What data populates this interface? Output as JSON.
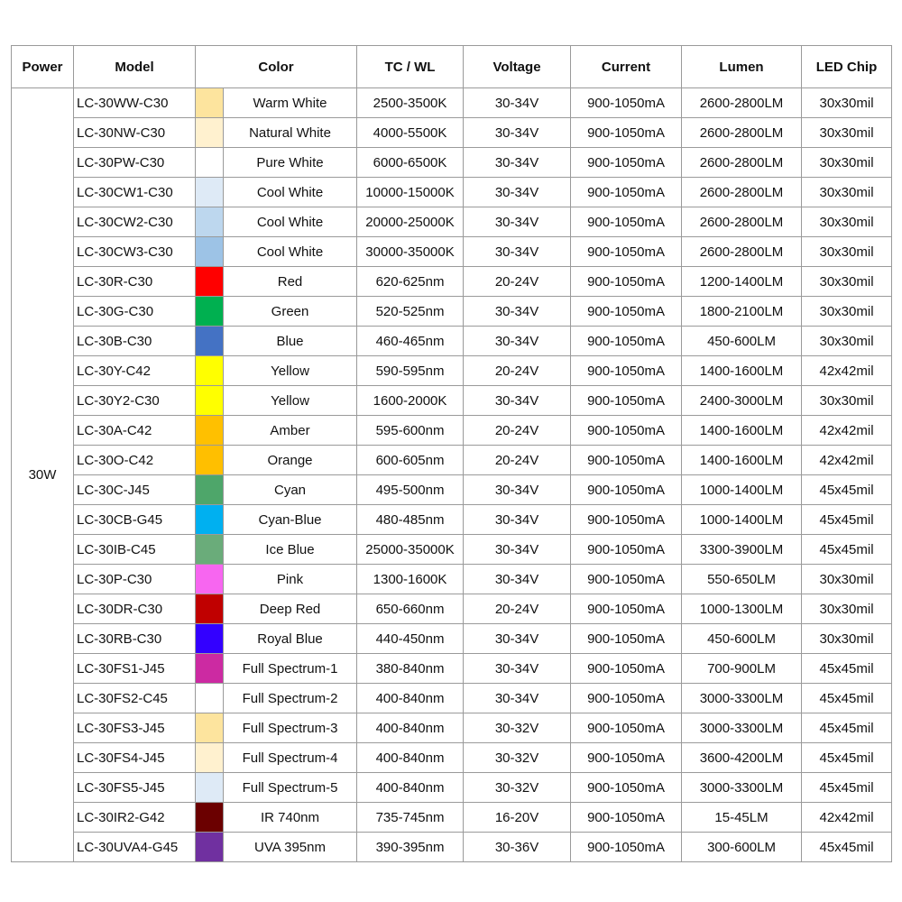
{
  "table": {
    "headers": [
      "Power",
      "Model",
      "Color",
      "TC / WL",
      "Voltage",
      "Current",
      "Lumen",
      "LED Chip"
    ],
    "power": "30W",
    "rows": [
      {
        "model": "LC-30WW-C30",
        "swatch": "#fde49e",
        "color": "Warm White",
        "tcwl": "2500-3500K",
        "voltage": "30-34V",
        "current": "900-1050mA",
        "lumen": "2600-2800LM",
        "chip": "30x30mil"
      },
      {
        "model": "LC-30NW-C30",
        "swatch": "#fff1cf",
        "color": "Natural White",
        "tcwl": "4000-5500K",
        "voltage": "30-34V",
        "current": "900-1050mA",
        "lumen": "2600-2800LM",
        "chip": "30x30mil"
      },
      {
        "model": "LC-30PW-C30",
        "swatch": "#ffffff",
        "color": "Pure White",
        "tcwl": "6000-6500K",
        "voltage": "30-34V",
        "current": "900-1050mA",
        "lumen": "2600-2800LM",
        "chip": "30x30mil"
      },
      {
        "model": "LC-30CW1-C30",
        "swatch": "#deeaf6",
        "color": "Cool White",
        "tcwl": "10000-15000K",
        "voltage": "30-34V",
        "current": "900-1050mA",
        "lumen": "2600-2800LM",
        "chip": "30x30mil"
      },
      {
        "model": "LC-30CW2-C30",
        "swatch": "#bdd7ee",
        "color": "Cool White",
        "tcwl": "20000-25000K",
        "voltage": "30-34V",
        "current": "900-1050mA",
        "lumen": "2600-2800LM",
        "chip": "30x30mil"
      },
      {
        "model": "LC-30CW3-C30",
        "swatch": "#9dc3e6",
        "color": "Cool White",
        "tcwl": "30000-35000K",
        "voltage": "30-34V",
        "current": "900-1050mA",
        "lumen": "2600-2800LM",
        "chip": "30x30mil"
      },
      {
        "model": "LC-30R-C30",
        "swatch": "#ff0000",
        "color": "Red",
        "tcwl": "620-625nm",
        "voltage": "20-24V",
        "current": "900-1050mA",
        "lumen": "1200-1400LM",
        "chip": "30x30mil"
      },
      {
        "model": "LC-30G-C30",
        "swatch": "#00b050",
        "color": "Green",
        "tcwl": "520-525nm",
        "voltage": "30-34V",
        "current": "900-1050mA",
        "lumen": "1800-2100LM",
        "chip": "30x30mil"
      },
      {
        "model": "LC-30B-C30",
        "swatch": "#4472c4",
        "color": "Blue",
        "tcwl": "460-465nm",
        "voltage": "30-34V",
        "current": "900-1050mA",
        "lumen": "450-600LM",
        "chip": "30x30mil"
      },
      {
        "model": "LC-30Y-C42",
        "swatch": "#ffff00",
        "color": "Yellow",
        "tcwl": "590-595nm",
        "voltage": "20-24V",
        "current": "900-1050mA",
        "lumen": "1400-1600LM",
        "chip": "42x42mil"
      },
      {
        "model": "LC-30Y2-C30",
        "swatch": "#ffff00",
        "color": "Yellow",
        "tcwl": "1600-2000K",
        "voltage": "30-34V",
        "current": "900-1050mA",
        "lumen": "2400-3000LM",
        "chip": "30x30mil"
      },
      {
        "model": "LC-30A-C42",
        "swatch": "#ffc000",
        "color": "Amber",
        "tcwl": "595-600nm",
        "voltage": "20-24V",
        "current": "900-1050mA",
        "lumen": "1400-1600LM",
        "chip": "42x42mil"
      },
      {
        "model": "LC-30O-C42",
        "swatch": "#ffbf00",
        "color": "Orange",
        "tcwl": "600-605nm",
        "voltage": "20-24V",
        "current": "900-1050mA",
        "lumen": "1400-1600LM",
        "chip": "42x42mil"
      },
      {
        "model": "LC-30C-J45",
        "swatch": "#4ea66a",
        "color": "Cyan",
        "tcwl": "495-500nm",
        "voltage": "30-34V",
        "current": "900-1050mA",
        "lumen": "1000-1400LM",
        "chip": "45x45mil"
      },
      {
        "model": "LC-30CB-G45",
        "swatch": "#00b0f0",
        "color": "Cyan-Blue",
        "tcwl": "480-485nm",
        "voltage": "30-34V",
        "current": "900-1050mA",
        "lumen": "1000-1400LM",
        "chip": "45x45mil"
      },
      {
        "model": "LC-30IB-C45",
        "swatch": "#6aac7a",
        "color": "Ice Blue",
        "tcwl": "25000-35000K",
        "voltage": "30-34V",
        "current": "900-1050mA",
        "lumen": "3300-3900LM",
        "chip": "45x45mil"
      },
      {
        "model": "LC-30P-C30",
        "swatch": "#f766f0",
        "color": "Pink",
        "tcwl": "1300-1600K",
        "voltage": "30-34V",
        "current": "900-1050mA",
        "lumen": "550-650LM",
        "chip": "30x30mil"
      },
      {
        "model": "LC-30DR-C30",
        "swatch": "#c00000",
        "color": "Deep Red",
        "tcwl": "650-660nm",
        "voltage": "20-24V",
        "current": "900-1050mA",
        "lumen": "1000-1300LM",
        "chip": "30x30mil"
      },
      {
        "model": "LC-30RB-C30",
        "swatch": "#3300ff",
        "color": "Royal Blue",
        "tcwl": "440-450nm",
        "voltage": "30-34V",
        "current": "900-1050mA",
        "lumen": "450-600LM",
        "chip": "30x30mil"
      },
      {
        "model": "LC-30FS1-J45",
        "swatch": "#cc2aa2",
        "color": "Full Spectrum-1",
        "tcwl": "380-840nm",
        "voltage": "30-34V",
        "current": "900-1050mA",
        "lumen": "700-900LM",
        "chip": "45x45mil"
      },
      {
        "model": "LC-30FS2-C45",
        "swatch": "#ffffff",
        "color": "Full Spectrum-2",
        "tcwl": "400-840nm",
        "voltage": "30-34V",
        "current": "900-1050mA",
        "lumen": "3000-3300LM",
        "chip": "45x45mil"
      },
      {
        "model": "LC-30FS3-J45",
        "swatch": "#fde49e",
        "color": "Full Spectrum-3",
        "tcwl": "400-840nm",
        "voltage": "30-32V",
        "current": "900-1050mA",
        "lumen": "3000-3300LM",
        "chip": "45x45mil"
      },
      {
        "model": "LC-30FS4-J45",
        "swatch": "#fff1cf",
        "color": "Full Spectrum-4",
        "tcwl": "400-840nm",
        "voltage": "30-32V",
        "current": "900-1050mA",
        "lumen": "3600-4200LM",
        "chip": "45x45mil"
      },
      {
        "model": "LC-30FS5-J45",
        "swatch": "#deeaf6",
        "color": "Full Spectrum-5",
        "tcwl": "400-840nm",
        "voltage": "30-32V",
        "current": "900-1050mA",
        "lumen": "3000-3300LM",
        "chip": "45x45mil"
      },
      {
        "model": "LC-30IR2-G42",
        "swatch": "#6b0000",
        "color": "IR 740nm",
        "tcwl": "735-745nm",
        "voltage": "16-20V",
        "current": "900-1050mA",
        "lumen": "15-45LM",
        "chip": "42x42mil"
      },
      {
        "model": "LC-30UVA4-G45",
        "swatch": "#7030a0",
        "color": "UVA 395nm",
        "tcwl": "390-395nm",
        "voltage": "30-36V",
        "current": "900-1050mA",
        "lumen": "300-600LM",
        "chip": "45x45mil"
      }
    ]
  }
}
